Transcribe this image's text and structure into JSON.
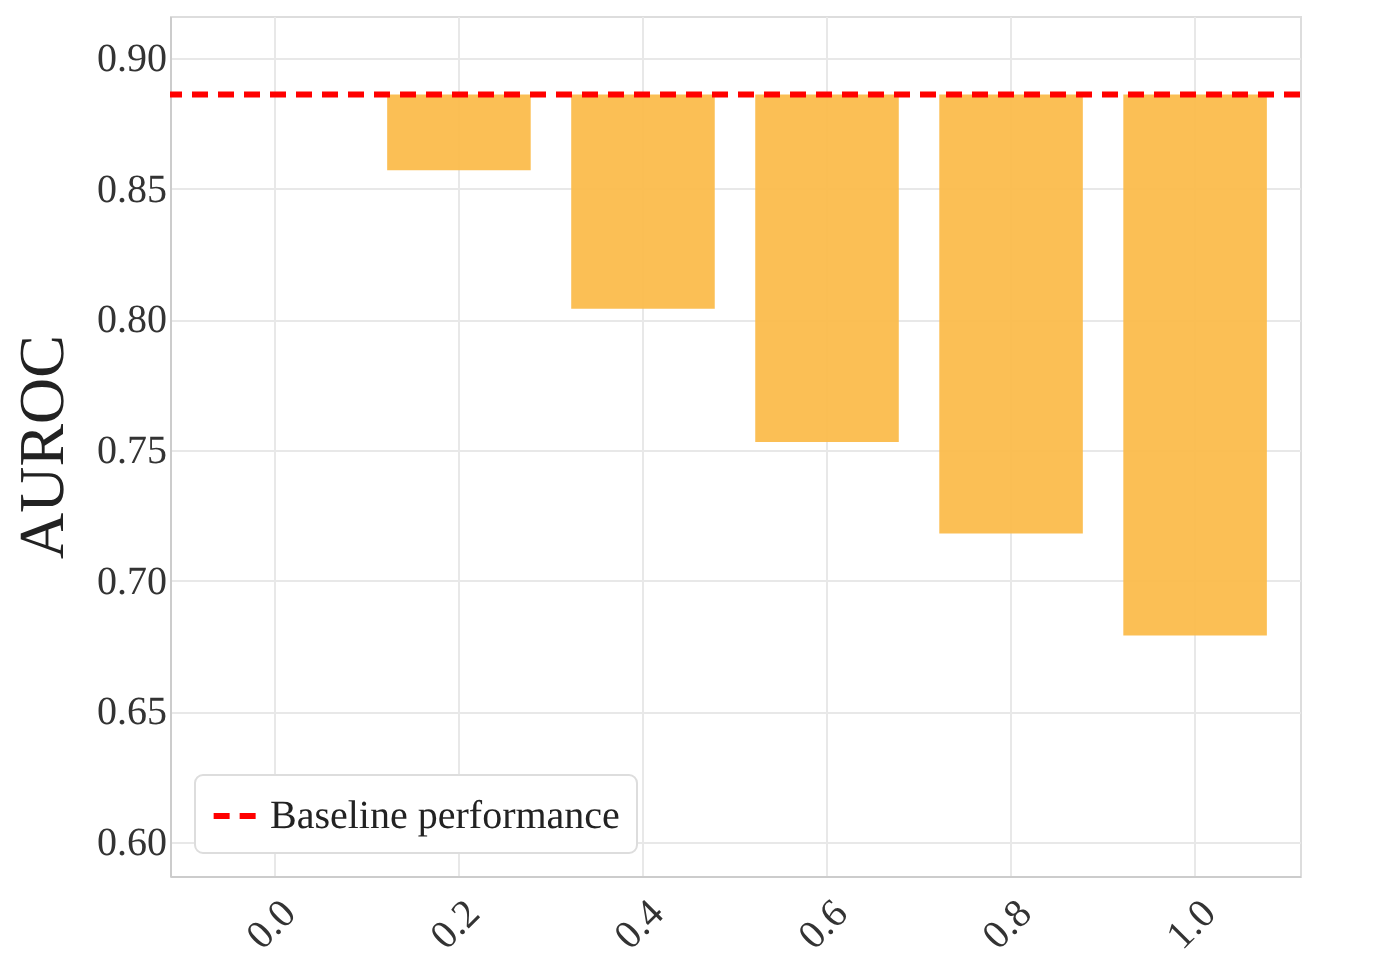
{
  "chart_data": {
    "type": "bar",
    "ylabel": "AUROC",
    "categories": [
      "0.0",
      "0.2",
      "0.4",
      "0.6",
      "0.8",
      "1.0"
    ],
    "series": [
      {
        "color": "#fbbc4c",
        "values": [
          null,
          -0.029,
          -0.082,
          -0.133,
          -0.168,
          -0.207
        ],
        "base": [
          null,
          0.886,
          0.886,
          0.886,
          0.886,
          0.886
        ]
      }
    ],
    "ylim": [
      0.587,
      0.916
    ],
    "yticks": [
      {
        "value": 0.6,
        "label": "0.60"
      },
      0.65,
      {
        "value": 0.7,
        "label": "0.70"
      },
      0.75,
      {
        "value": 0.8,
        "label": "0.80"
      },
      0.85,
      {
        "value": 0.9,
        "label": "0.90"
      }
    ],
    "ref_lines": [
      {
        "axis": "y",
        "value": 0.886,
        "label": "Baseline performance",
        "color": "#ff0000",
        "line_style": "dashed"
      }
    ],
    "grid": true,
    "legend": "bottom left"
  }
}
